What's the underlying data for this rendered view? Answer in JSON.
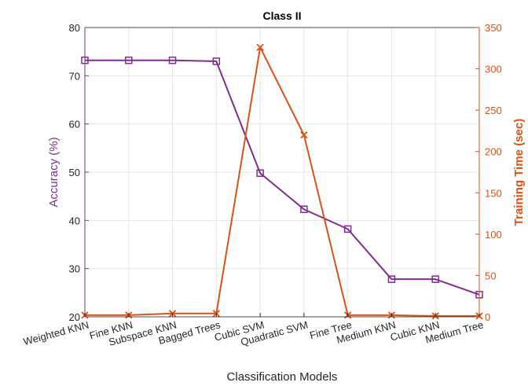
{
  "chart_data": {
    "type": "line",
    "title": "Class II",
    "xlabel": "Classification Models",
    "ylabel_left": "Accuracy (%)",
    "ylabel_right": "Training Time (sec)",
    "categories": [
      "Weighted KNN",
      "Fine KNN",
      "Subspace KNN",
      "Bagged Trees",
      "Cubic SVM",
      "Quadratic SVM",
      "Fine Tree",
      "Medium KNN",
      "Cubic KNN",
      "Medium Tree"
    ],
    "ylim_left": [
      20,
      80
    ],
    "yticks_left": [
      20,
      30,
      40,
      50,
      60,
      70,
      80
    ],
    "ylim_right": [
      0,
      350
    ],
    "yticks_right": [
      0,
      50,
      100,
      150,
      200,
      250,
      300,
      350
    ],
    "grid": true,
    "colors": {
      "left": "#7E2F8E",
      "right": "#D95319",
      "grid": "#e6e6e6",
      "axis": "#262626"
    },
    "series": [
      {
        "axis": "left",
        "marker": "square",
        "values": [
          73.2,
          73.2,
          73.2,
          73.0,
          49.8,
          42.3,
          38.2,
          27.8,
          27.8,
          24.6
        ]
      },
      {
        "axis": "right",
        "marker": "x",
        "values": [
          2,
          2,
          4,
          4,
          326,
          220,
          2,
          2,
          1,
          1
        ]
      }
    ]
  }
}
